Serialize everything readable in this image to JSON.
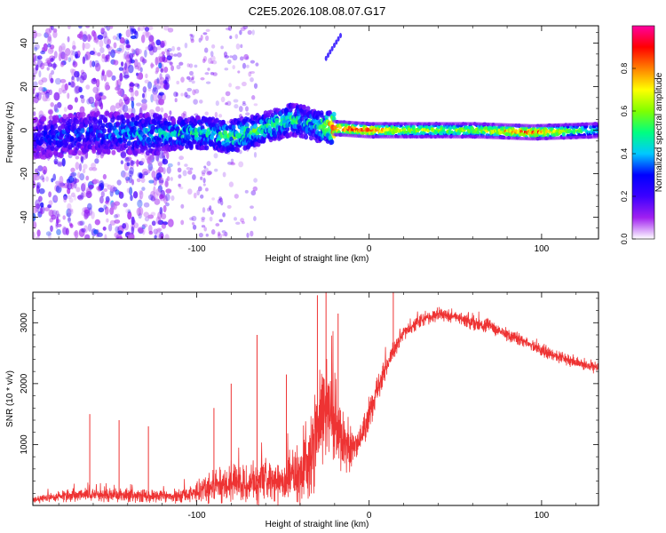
{
  "title": "C2E5.2026.108.08.07.G17",
  "chart_data": [
    {
      "type": "heatmap",
      "name": "spectrogram",
      "xlabel": "Height of straight line (km)",
      "ylabel": "Frequency (Hz)",
      "xlim": [
        -195,
        133
      ],
      "ylim": [
        -50,
        48
      ],
      "xticks": [
        -100,
        0,
        100
      ],
      "yticks": [
        -40,
        -20,
        0,
        20,
        40
      ],
      "colorbar": {
        "label": "Normalized spectral amplitude",
        "range": [
          0,
          1
        ],
        "ticks": [
          0.0,
          0.2,
          0.4,
          0.6,
          0.8
        ],
        "tick_labels": [
          "0.0",
          "0.2",
          "0.4",
          "0.6",
          "0.8"
        ],
        "colormap": [
          "#ffffff",
          "#a020f0",
          "#3c00ff",
          "#0000ff",
          "#00c8ff",
          "#00ff80",
          "#80ff00",
          "#ffff00",
          "#ff8000",
          "#ff0000",
          "#ff00a0"
        ]
      },
      "ridge": [
        {
          "x": -195,
          "y": -4,
          "amp": 0.3
        },
        {
          "x": -160,
          "y": -1,
          "amp": 0.35
        },
        {
          "x": -120,
          "y": -2,
          "amp": 0.45
        },
        {
          "x": -100,
          "y": -1,
          "amp": 0.5
        },
        {
          "x": -80,
          "y": -3,
          "amp": 0.55
        },
        {
          "x": -60,
          "y": 1,
          "amp": 0.55
        },
        {
          "x": -45,
          "y": 5,
          "amp": 0.5
        },
        {
          "x": -30,
          "y": 2,
          "amp": 0.45
        },
        {
          "x": -20,
          "y": 1,
          "amp": 0.95
        },
        {
          "x": 0,
          "y": 0,
          "amp": 0.9
        },
        {
          "x": 20,
          "y": 0,
          "amp": 0.7
        },
        {
          "x": 60,
          "y": 0,
          "amp": 0.65
        },
        {
          "x": 95,
          "y": -1,
          "amp": 0.9
        },
        {
          "x": 133,
          "y": 0,
          "amp": 0.45
        }
      ]
    },
    {
      "type": "line",
      "name": "snr",
      "xlabel": "Height of straight line (km)",
      "ylabel": "SNR (10 * v/v)",
      "xlim": [
        -195,
        133
      ],
      "ylim": [
        0,
        3500
      ],
      "xticks": [
        -100,
        0,
        100
      ],
      "yticks": [
        1000,
        2000,
        3000
      ],
      "color": "#ee3333",
      "series": [
        {
          "name": "SNR",
          "x": [
            -195,
            -180,
            -165,
            -150,
            -135,
            -120,
            -105,
            -90,
            -80,
            -70,
            -60,
            -50,
            -40,
            -35,
            -30,
            -25,
            -20,
            -15,
            -10,
            -5,
            0,
            5,
            10,
            15,
            20,
            30,
            40,
            50,
            60,
            70,
            80,
            90,
            100,
            110,
            120,
            133
          ],
          "y": [
            100,
            150,
            180,
            170,
            160,
            150,
            180,
            300,
            400,
            350,
            450,
            380,
            550,
            700,
            1200,
            1700,
            1300,
            1100,
            950,
            1100,
            1500,
            1900,
            2300,
            2600,
            2850,
            3050,
            3150,
            3100,
            3000,
            2950,
            2800,
            2700,
            2550,
            2450,
            2350,
            2250
          ],
          "spread": [
            90,
            130,
            150,
            150,
            150,
            150,
            200,
            400,
            500,
            500,
            600,
            500,
            700,
            900,
            1200,
            1300,
            1100,
            800,
            500,
            350,
            400,
            350,
            250,
            200,
            180,
            160,
            160,
            160,
            160,
            160,
            160,
            150,
            150,
            150,
            140,
            140
          ],
          "spikes": [
            {
              "x": -162,
              "y": 1500
            },
            {
              "x": -145,
              "y": 1400
            },
            {
              "x": -128,
              "y": 1300
            },
            {
              "x": -90,
              "y": 1600
            },
            {
              "x": -80,
              "y": 2000
            },
            {
              "x": -65,
              "y": 2800
            },
            {
              "x": -48,
              "y": 2150
            },
            {
              "x": -30,
              "y": 3450
            },
            {
              "x": -25,
              "y": 3500
            },
            {
              "x": -18,
              "y": 3150
            },
            {
              "x": 14,
              "y": 3500
            }
          ]
        }
      ]
    }
  ]
}
